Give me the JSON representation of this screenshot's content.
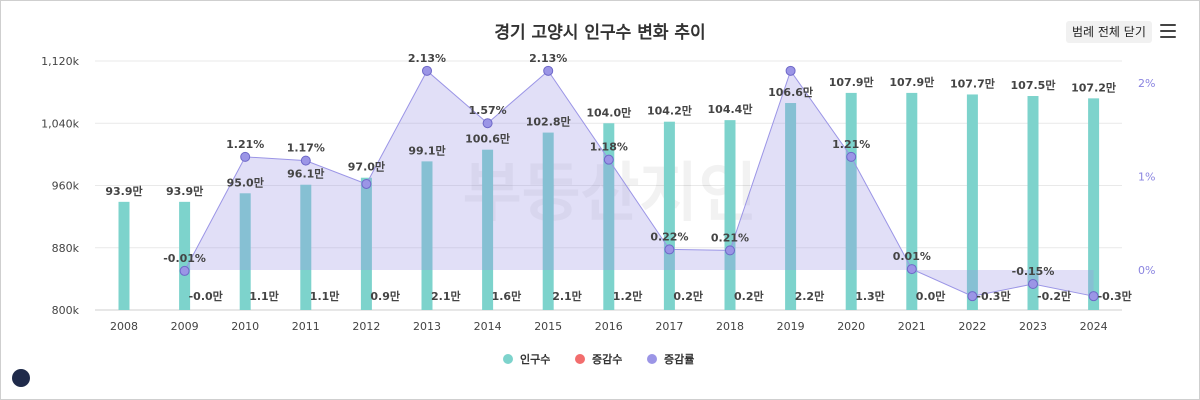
{
  "title": "경기 고양시 인구수 변화 추이",
  "legend_toggle_label": "범례 전체 닫기",
  "watermark": "부동산지인",
  "legend": [
    {
      "label": "인구수",
      "color": "#7dd3cc"
    },
    {
      "label": "증감수",
      "color": "#f26d6d"
    },
    {
      "label": "증감률",
      "color": "#9b95e6"
    }
  ],
  "chart_data": {
    "type": "bar",
    "title": "경기 고양시 인구수 변화 추이",
    "categories": [
      "2008",
      "2009",
      "2010",
      "2011",
      "2012",
      "2013",
      "2014",
      "2015",
      "2016",
      "2017",
      "2018",
      "2019",
      "2020",
      "2021",
      "2022",
      "2023",
      "2024"
    ],
    "series": [
      {
        "name": "인구수",
        "type": "bar",
        "axis": "left",
        "values": [
          939,
          939,
          950,
          961,
          970,
          991,
          1006,
          1028,
          1040,
          1042,
          1044,
          1066,
          1079,
          1079,
          1077,
          1075,
          1072
        ],
        "labels": [
          "93.9만",
          "93.9만",
          "95.0만",
          "96.1만",
          "97.0만",
          "99.1만",
          "100.6만",
          "102.8만",
          "104.0만",
          "104.2만",
          "104.4만",
          "106.6만",
          "107.9만",
          "107.9만",
          "107.7만",
          "107.5만",
          "107.2만"
        ]
      },
      {
        "name": "증감수",
        "type": "bar",
        "axis": "left",
        "values": [
          null,
          -0.0,
          1.1,
          1.1,
          0.9,
          2.1,
          1.6,
          2.1,
          1.2,
          0.2,
          0.2,
          2.2,
          1.3,
          0.0,
          -0.3,
          -0.2,
          -0.3
        ],
        "labels": [
          "",
          "-0.0만",
          "1.1만",
          "1.1만",
          "0.9만",
          "2.1만",
          "1.6만",
          "2.1만",
          "1.2만",
          "0.2만",
          "0.2만",
          "2.2만",
          "1.3만",
          "0.0만",
          "-0.3만",
          "-0.2만",
          "-0.3만"
        ]
      },
      {
        "name": "증감률",
        "type": "area",
        "axis": "right",
        "values": [
          null,
          -0.01,
          1.21,
          1.17,
          0.92,
          2.13,
          1.57,
          2.13,
          1.18,
          0.22,
          0.21,
          2.13,
          1.21,
          0.01,
          -0.28,
          -0.15,
          -0.28
        ],
        "labels": [
          "",
          "-0.01%",
          "1.21%",
          "1.17%",
          "",
          "2.13%",
          "1.57%",
          "2.13%",
          "1.18%",
          "0.22%",
          "0.21%",
          "",
          "1.21%",
          "0.01%",
          "",
          "-0.15%",
          ""
        ]
      }
    ],
    "y_left": {
      "min": 800,
      "max": 1120,
      "ticks": [
        800,
        880,
        960,
        1040,
        1120
      ],
      "tick_labels": [
        "800k",
        "880k",
        "960k",
        "1,040k",
        "1,120k"
      ]
    },
    "y_right": {
      "ticks": [
        0,
        1,
        2
      ],
      "tick_labels": [
        "0%",
        "1%",
        "2%"
      ]
    },
    "xlabel": "",
    "ylabel": ""
  }
}
